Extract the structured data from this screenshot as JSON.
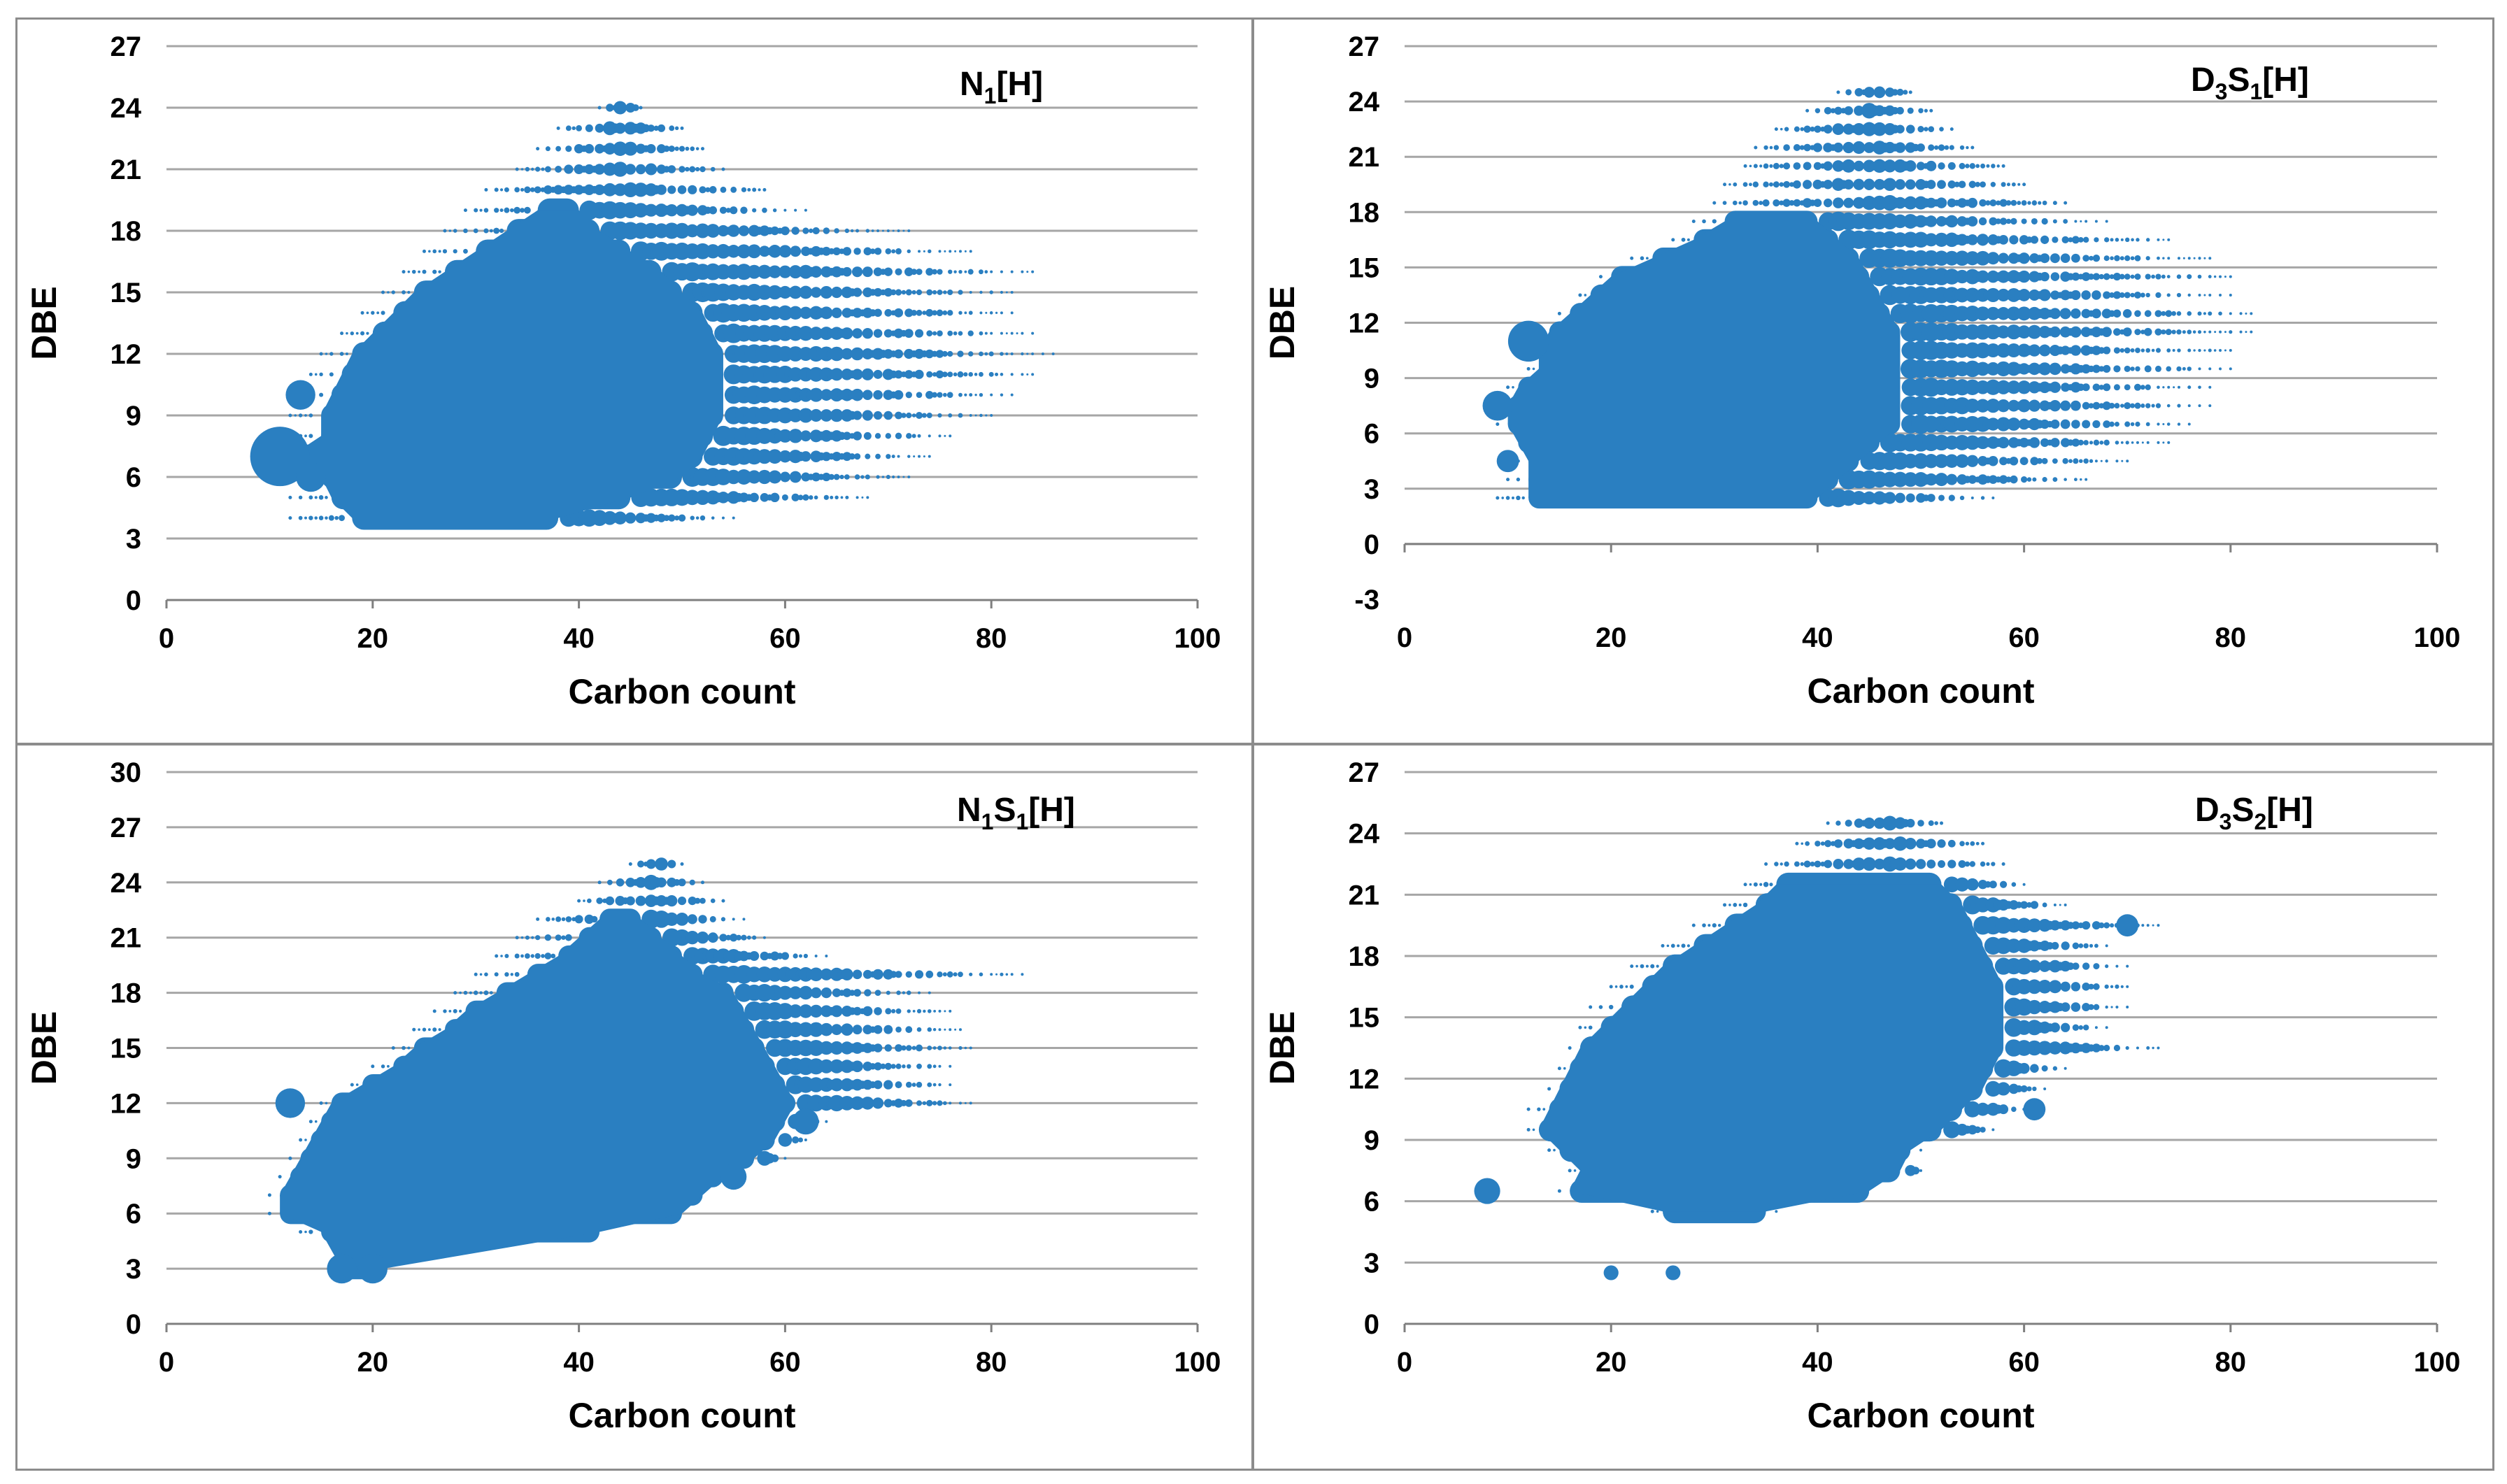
{
  "colors": {
    "points": "#2a7fc1",
    "grid": "#a6a6a6",
    "axis": "#7f7f7f",
    "border": "#8c8c8c"
  },
  "chart_data": [
    {
      "type": "scatter",
      "title": "N1[H]",
      "title_parts": [
        {
          "text": "N"
        },
        {
          "text": "1",
          "sub": true
        },
        {
          "text": "[H]"
        }
      ],
      "xlabel": "Carbon count",
      "ylabel": "DBE",
      "xlim": [
        0,
        100
      ],
      "ylim": [
        0,
        27
      ],
      "xticks": [
        0,
        20,
        40,
        60,
        80,
        100
      ],
      "yticks": [
        0,
        3,
        6,
        9,
        12,
        15,
        18,
        21,
        24,
        27
      ],
      "grid": true,
      "shape": {
        "rows": [
          {
            "dbe": 4,
            "cmin": 12,
            "cmax": 55,
            "core": [
              18,
              38
            ]
          },
          {
            "dbe": 5,
            "cmin": 12,
            "cmax": 68,
            "core": [
              16,
              45
            ]
          },
          {
            "dbe": 6,
            "cmin": 11,
            "cmax": 72,
            "core": [
              15,
              50
            ]
          },
          {
            "dbe": 7,
            "cmin": 10,
            "cmax": 74,
            "core": [
              12,
              52
            ]
          },
          {
            "dbe": 8,
            "cmin": 12,
            "cmax": 76,
            "core": [
              15,
              53
            ]
          },
          {
            "dbe": 9,
            "cmin": 12,
            "cmax": 80,
            "core": [
              15,
              54
            ]
          },
          {
            "dbe": 10,
            "cmin": 13,
            "cmax": 82,
            "core": [
              16,
              54
            ]
          },
          {
            "dbe": 11,
            "cmin": 14,
            "cmax": 84,
            "core": [
              17,
              54
            ]
          },
          {
            "dbe": 12,
            "cmin": 15,
            "cmax": 86,
            "core": [
              18,
              54
            ]
          },
          {
            "dbe": 13,
            "cmin": 17,
            "cmax": 84,
            "core": [
              20,
              53
            ]
          },
          {
            "dbe": 14,
            "cmin": 19,
            "cmax": 82,
            "core": [
              22,
              52
            ]
          },
          {
            "dbe": 15,
            "cmin": 21,
            "cmax": 82,
            "core": [
              24,
              50
            ]
          },
          {
            "dbe": 16,
            "cmin": 23,
            "cmax": 84,
            "core": [
              27,
              48
            ]
          },
          {
            "dbe": 17,
            "cmin": 25,
            "cmax": 78,
            "core": [
              30,
              45
            ]
          },
          {
            "dbe": 18,
            "cmin": 27,
            "cmax": 72,
            "core": [
              33,
              42
            ]
          },
          {
            "dbe": 19,
            "cmin": 29,
            "cmax": 62,
            "core": [
              36,
              40
            ]
          },
          {
            "dbe": 20,
            "cmin": 31,
            "cmax": 58,
            "core": [
              0,
              0
            ]
          },
          {
            "dbe": 21,
            "cmin": 34,
            "cmax": 54,
            "core": [
              0,
              0
            ]
          },
          {
            "dbe": 22,
            "cmin": 36,
            "cmax": 52,
            "core": [
              0,
              0
            ]
          },
          {
            "dbe": 23,
            "cmin": 38,
            "cmax": 50,
            "core": [
              0,
              0
            ]
          },
          {
            "dbe": 24,
            "cmin": 42,
            "cmax": 46,
            "core": [
              0,
              0
            ]
          }
        ],
        "highlights": [
          {
            "c": 11,
            "dbe": 7,
            "size": 3.2
          },
          {
            "c": 13,
            "dbe": 10,
            "size": 1.6
          },
          {
            "c": 14,
            "dbe": 6,
            "size": 1.6
          }
        ]
      }
    },
    {
      "type": "scatter",
      "title": "D3S1[H]",
      "title_parts": [
        {
          "text": "D"
        },
        {
          "text": "3",
          "sub": true
        },
        {
          "text": "S"
        },
        {
          "text": "1",
          "sub": true
        },
        {
          "text": "[H]"
        }
      ],
      "xlabel": "Carbon count",
      "ylabel": "DBE",
      "xlim": [
        0,
        100
      ],
      "ylim": [
        -3,
        27
      ],
      "xticks": [
        0,
        20,
        40,
        60,
        80,
        100
      ],
      "yticks": [
        -3,
        0,
        3,
        6,
        9,
        12,
        15,
        18,
        21,
        24,
        27
      ],
      "grid": true,
      "shape": {
        "rows": [
          {
            "dbe": 2.5,
            "cmin": 9,
            "cmax": 57,
            "core": [
              12,
              40
            ]
          },
          {
            "dbe": 3.5,
            "cmin": 10,
            "cmax": 66,
            "core": [
              12,
              42
            ]
          },
          {
            "dbe": 4.5,
            "cmin": 11,
            "cmax": 70,
            "core": [
              12,
              44
            ]
          },
          {
            "dbe": 5.5,
            "cmin": 11,
            "cmax": 74,
            "core": [
              11,
              46
            ]
          },
          {
            "dbe": 6.5,
            "cmin": 9,
            "cmax": 76,
            "core": [
              10,
              48
            ]
          },
          {
            "dbe": 7.5,
            "cmin": 9,
            "cmax": 78,
            "core": [
              10,
              48
            ]
          },
          {
            "dbe": 8.5,
            "cmin": 10,
            "cmax": 78,
            "core": [
              11,
              48
            ]
          },
          {
            "dbe": 9.5,
            "cmin": 12,
            "cmax": 80,
            "core": [
              13,
              48
            ]
          },
          {
            "dbe": 10.5,
            "cmin": 12,
            "cmax": 80,
            "core": [
              13,
              48
            ]
          },
          {
            "dbe": 11.5,
            "cmin": 13,
            "cmax": 82,
            "core": [
              14,
              48
            ]
          },
          {
            "dbe": 12.5,
            "cmin": 15,
            "cmax": 82,
            "core": [
              16,
              47
            ]
          },
          {
            "dbe": 13.5,
            "cmin": 17,
            "cmax": 80,
            "core": [
              18,
              46
            ]
          },
          {
            "dbe": 14.5,
            "cmin": 19,
            "cmax": 80,
            "core": [
              20,
              45
            ]
          },
          {
            "dbe": 15.5,
            "cmin": 22,
            "cmax": 78,
            "core": [
              24,
              44
            ]
          },
          {
            "dbe": 16.5,
            "cmin": 26,
            "cmax": 74,
            "core": [
              28,
              42
            ]
          },
          {
            "dbe": 17.5,
            "cmin": 28,
            "cmax": 68,
            "core": [
              31,
              40
            ]
          },
          {
            "dbe": 18.5,
            "cmin": 30,
            "cmax": 64,
            "core": [
              0,
              0
            ]
          },
          {
            "dbe": 19.5,
            "cmin": 31,
            "cmax": 60,
            "core": [
              0,
              0
            ]
          },
          {
            "dbe": 20.5,
            "cmin": 33,
            "cmax": 58,
            "core": [
              0,
              0
            ]
          },
          {
            "dbe": 21.5,
            "cmin": 34,
            "cmax": 55,
            "core": [
              0,
              0
            ]
          },
          {
            "dbe": 22.5,
            "cmin": 36,
            "cmax": 53,
            "core": [
              0,
              0
            ]
          },
          {
            "dbe": 23.5,
            "cmin": 39,
            "cmax": 51,
            "core": [
              0,
              0
            ]
          },
          {
            "dbe": 24.5,
            "cmin": 42,
            "cmax": 49,
            "core": [
              0,
              0
            ]
          }
        ],
        "highlights": [
          {
            "c": 9,
            "dbe": 7.5,
            "size": 1.6
          },
          {
            "c": 10,
            "dbe": 4.5,
            "size": 1.2
          },
          {
            "c": 12,
            "dbe": 11,
            "size": 2.2
          }
        ]
      }
    },
    {
      "type": "scatter",
      "title": "N1S1[H]",
      "title_parts": [
        {
          "text": "N"
        },
        {
          "text": "1",
          "sub": true
        },
        {
          "text": "S"
        },
        {
          "text": "1",
          "sub": true
        },
        {
          "text": "[H]"
        }
      ],
      "xlabel": "Carbon count",
      "ylabel": "DBE",
      "xlim": [
        0,
        100
      ],
      "ylim": [
        0,
        30
      ],
      "xticks": [
        0,
        20,
        40,
        60,
        80,
        100
      ],
      "yticks": [
        0,
        3,
        6,
        9,
        12,
        15,
        18,
        21,
        24,
        27,
        30
      ],
      "grid": true,
      "shape": {
        "rows": [
          {
            "dbe": 3,
            "cmin": 17,
            "cmax": 21,
            "core": [
              17,
              21
            ]
          },
          {
            "dbe": 5,
            "cmin": 13,
            "cmax": 42,
            "core": [
              15,
              42
            ]
          },
          {
            "dbe": 6,
            "cmin": 10,
            "cmax": 50,
            "core": [
              11,
              50
            ]
          },
          {
            "dbe": 7,
            "cmin": 10,
            "cmax": 52,
            "core": [
              11,
              52
            ]
          },
          {
            "dbe": 8,
            "cmin": 11,
            "cmax": 56,
            "core": [
              12,
              54
            ]
          },
          {
            "dbe": 9,
            "cmin": 12,
            "cmax": 60,
            "core": [
              13,
              57
            ]
          },
          {
            "dbe": 10,
            "cmin": 13,
            "cmax": 62,
            "core": [
              14,
              59
            ]
          },
          {
            "dbe": 11,
            "cmin": 14,
            "cmax": 64,
            "core": [
              15,
              60
            ]
          },
          {
            "dbe": 12,
            "cmin": 15,
            "cmax": 78,
            "core": [
              16,
              61
            ]
          },
          {
            "dbe": 13,
            "cmin": 18,
            "cmax": 76,
            "core": [
              19,
              60
            ]
          },
          {
            "dbe": 14,
            "cmin": 20,
            "cmax": 76,
            "core": [
              22,
              59
            ]
          },
          {
            "dbe": 15,
            "cmin": 22,
            "cmax": 78,
            "core": [
              24,
              58
            ]
          },
          {
            "dbe": 16,
            "cmin": 24,
            "cmax": 77,
            "core": [
              27,
              57
            ]
          },
          {
            "dbe": 17,
            "cmin": 26,
            "cmax": 76,
            "core": [
              29,
              56
            ]
          },
          {
            "dbe": 18,
            "cmin": 28,
            "cmax": 74,
            "core": [
              32,
              55
            ]
          },
          {
            "dbe": 19,
            "cmin": 30,
            "cmax": 83,
            "core": [
              35,
              52
            ]
          },
          {
            "dbe": 20,
            "cmin": 32,
            "cmax": 64,
            "core": [
              38,
              50
            ]
          },
          {
            "dbe": 21,
            "cmin": 34,
            "cmax": 58,
            "core": [
              40,
              48
            ]
          },
          {
            "dbe": 22,
            "cmin": 36,
            "cmax": 56,
            "core": [
              42,
              46
            ]
          },
          {
            "dbe": 23,
            "cmin": 40,
            "cmax": 54,
            "core": [
              0,
              0
            ]
          },
          {
            "dbe": 24,
            "cmin": 42,
            "cmax": 52,
            "core": [
              0,
              0
            ]
          },
          {
            "dbe": 25,
            "cmin": 45,
            "cmax": 50,
            "core": [
              0,
              0
            ]
          }
        ],
        "highlights": [
          {
            "c": 17,
            "dbe": 3,
            "size": 1.6
          },
          {
            "c": 20,
            "dbe": 3,
            "size": 1.6
          },
          {
            "c": 12,
            "dbe": 12,
            "size": 1.6
          },
          {
            "c": 62,
            "dbe": 11,
            "size": 1.4
          },
          {
            "c": 55,
            "dbe": 8,
            "size": 1.4
          }
        ]
      }
    },
    {
      "type": "scatter",
      "title": "D3S2[H]",
      "title_parts": [
        {
          "text": "D"
        },
        {
          "text": "3",
          "sub": true
        },
        {
          "text": "S"
        },
        {
          "text": "2",
          "sub": true
        },
        {
          "text": "[H]"
        }
      ],
      "xlabel": "Carbon count",
      "ylabel": "DBE",
      "xlim": [
        0,
        100
      ],
      "ylim": [
        0,
        27
      ],
      "xticks": [
        0,
        20,
        40,
        60,
        80,
        100
      ],
      "yticks": [
        0,
        3,
        6,
        9,
        12,
        15,
        18,
        21,
        24,
        27
      ],
      "grid": true,
      "shape": {
        "rows": [
          {
            "dbe": 5.5,
            "cmin": 24,
            "cmax": 36,
            "core": [
              25,
              35
            ]
          },
          {
            "dbe": 6.5,
            "cmin": 15,
            "cmax": 45,
            "core": [
              16,
              45
            ]
          },
          {
            "dbe": 7.5,
            "cmin": 16,
            "cmax": 50,
            "core": [
              17,
              48
            ]
          },
          {
            "dbe": 8.5,
            "cmin": 14,
            "cmax": 50,
            "core": [
              15,
              49
            ]
          },
          {
            "dbe": 9.5,
            "cmin": 12,
            "cmax": 57,
            "core": [
              13,
              52
            ]
          },
          {
            "dbe": 10.5,
            "cmin": 12,
            "cmax": 61,
            "core": [
              14,
              54
            ]
          },
          {
            "dbe": 11.5,
            "cmin": 14,
            "cmax": 62,
            "core": [
              15,
              56
            ]
          },
          {
            "dbe": 12.5,
            "cmin": 15,
            "cmax": 64,
            "core": [
              16,
              57
            ]
          },
          {
            "dbe": 13.5,
            "cmin": 16,
            "cmax": 73,
            "core": [
              17,
              58
            ]
          },
          {
            "dbe": 14.5,
            "cmin": 17,
            "cmax": 68,
            "core": [
              19,
              58
            ]
          },
          {
            "dbe": 15.5,
            "cmin": 18,
            "cmax": 70,
            "core": [
              21,
              58
            ]
          },
          {
            "dbe": 16.5,
            "cmin": 20,
            "cmax": 70,
            "core": [
              23,
              58
            ]
          },
          {
            "dbe": 17.5,
            "cmin": 22,
            "cmax": 70,
            "core": [
              25,
              57
            ]
          },
          {
            "dbe": 18.5,
            "cmin": 25,
            "cmax": 68,
            "core": [
              28,
              56
            ]
          },
          {
            "dbe": 19.5,
            "cmin": 28,
            "cmax": 73,
            "core": [
              31,
              55
            ]
          },
          {
            "dbe": 20.5,
            "cmin": 31,
            "cmax": 64,
            "core": [
              34,
              54
            ]
          },
          {
            "dbe": 21.5,
            "cmin": 33,
            "cmax": 60,
            "core": [
              36,
              52
            ]
          },
          {
            "dbe": 22.5,
            "cmin": 35,
            "cmax": 58,
            "core": [
              0,
              0
            ]
          },
          {
            "dbe": 23.5,
            "cmin": 38,
            "cmax": 56,
            "core": [
              0,
              0
            ]
          },
          {
            "dbe": 24.5,
            "cmin": 41,
            "cmax": 52,
            "core": [
              0,
              0
            ]
          }
        ],
        "highlights": [
          {
            "c": 8,
            "dbe": 6.5,
            "size": 1.4
          },
          {
            "c": 20,
            "dbe": 2.5,
            "size": 0.8
          },
          {
            "c": 26,
            "dbe": 2.5,
            "size": 0.8
          },
          {
            "c": 70,
            "dbe": 19.5,
            "size": 1.2
          },
          {
            "c": 61,
            "dbe": 10.5,
            "size": 1.2
          }
        ]
      }
    }
  ]
}
